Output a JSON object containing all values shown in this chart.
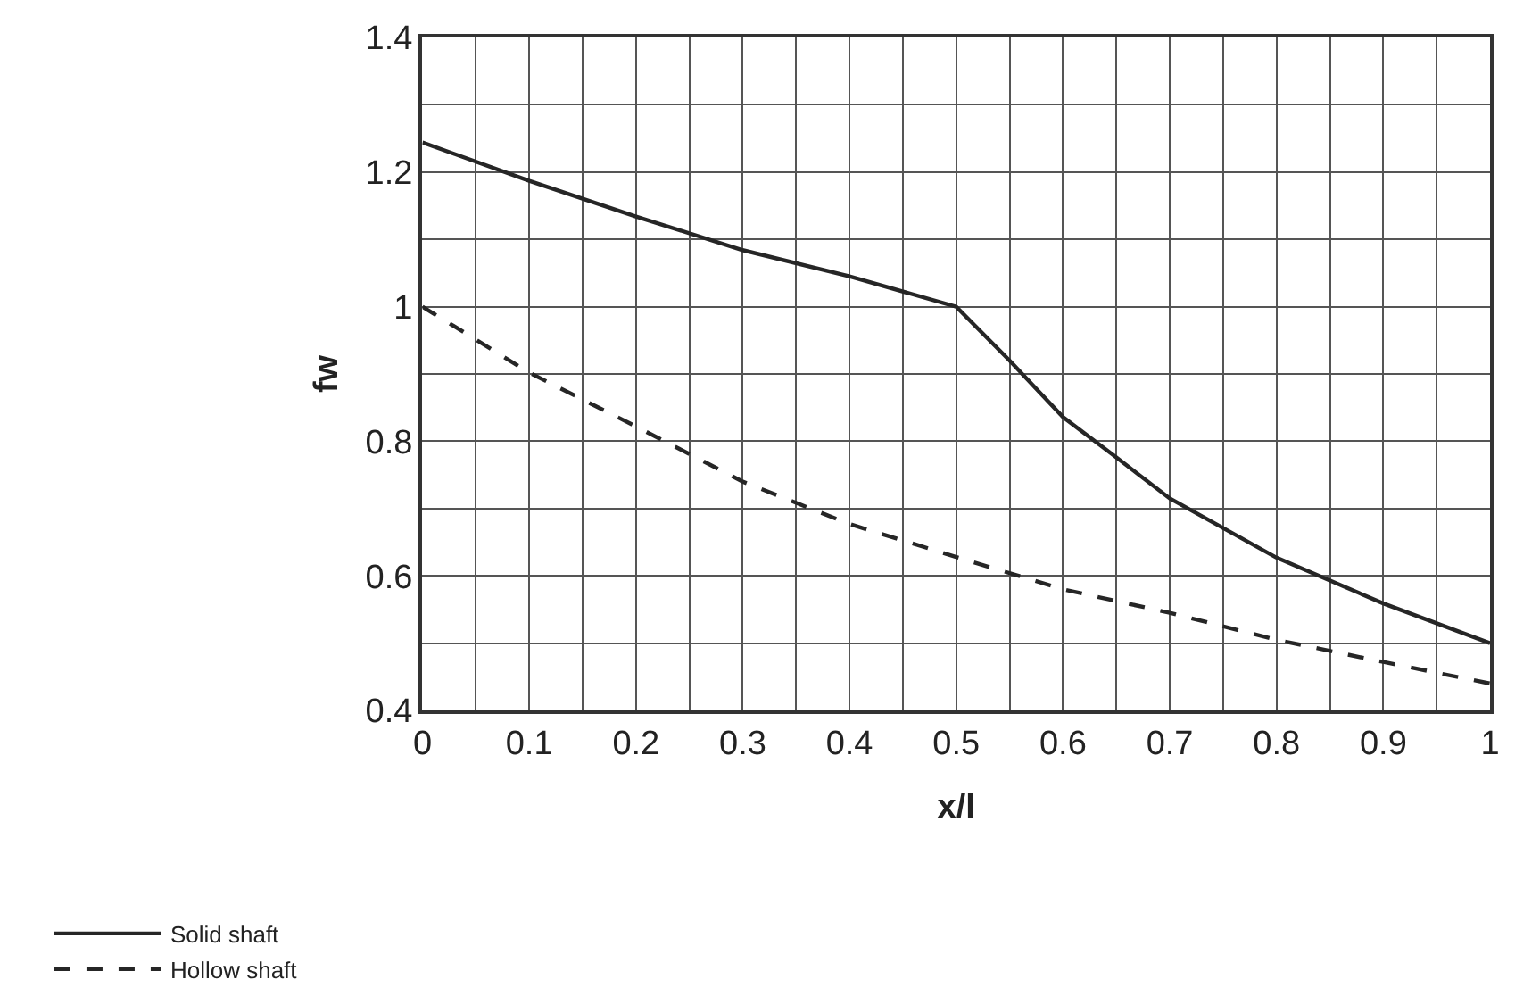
{
  "chart_data": {
    "type": "line",
    "xlabel": "x/l",
    "ylabel": "fw",
    "x": [
      0,
      0.1,
      0.2,
      0.3,
      0.4,
      0.5,
      0.55,
      0.6,
      0.65,
      0.7,
      0.8,
      0.9,
      1.0
    ],
    "series": [
      {
        "name": "Solid shaft",
        "color": "#262626",
        "line_style": "solid",
        "values": [
          1.244,
          1.187,
          1.134,
          1.084,
          1.045,
          1.0,
          0.92,
          0.836,
          0.776,
          0.715,
          0.627,
          0.559,
          0.5
        ]
      },
      {
        "name": "Hollow shaft",
        "color": "#262626",
        "line_style": "dashed",
        "x": [
          0,
          0.1,
          0.2,
          0.3,
          0.4,
          0.5,
          0.6,
          0.7,
          0.8,
          0.9,
          1.0
        ],
        "values": [
          1.0,
          0.902,
          0.822,
          0.74,
          0.677,
          0.628,
          0.58,
          0.545,
          0.505,
          0.472,
          0.44
        ]
      }
    ],
    "xlim": [
      0,
      1
    ],
    "ylim": [
      0.4,
      1.4
    ],
    "xticks": [
      0,
      {
        "value": 0.05,
        "label": null
      },
      0.1,
      {
        "value": 0.15,
        "label": null
      },
      0.2,
      {
        "value": 0.25,
        "label": null
      },
      0.3,
      {
        "value": 0.35,
        "label": null
      },
      0.4,
      {
        "value": 0.45,
        "label": null
      },
      0.5,
      {
        "value": 0.55,
        "label": null
      },
      0.6,
      {
        "value": 0.65,
        "label": null
      },
      0.7,
      {
        "value": 0.75,
        "label": null
      },
      0.8,
      {
        "value": 0.85,
        "label": null
      },
      0.9,
      {
        "value": 0.95,
        "label": null
      },
      1
    ],
    "yticks": [
      0.4,
      {
        "value": 0.5,
        "label": null
      },
      0.6,
      {
        "value": 0.7,
        "label": null
      },
      0.8,
      {
        "value": 0.9,
        "label": null
      },
      1,
      {
        "value": 1.1,
        "label": null
      },
      1.2,
      {
        "value": 1.3,
        "label": null
      },
      1.4
    ],
    "grid": true,
    "legend": "bottom left",
    "marker": "none"
  }
}
